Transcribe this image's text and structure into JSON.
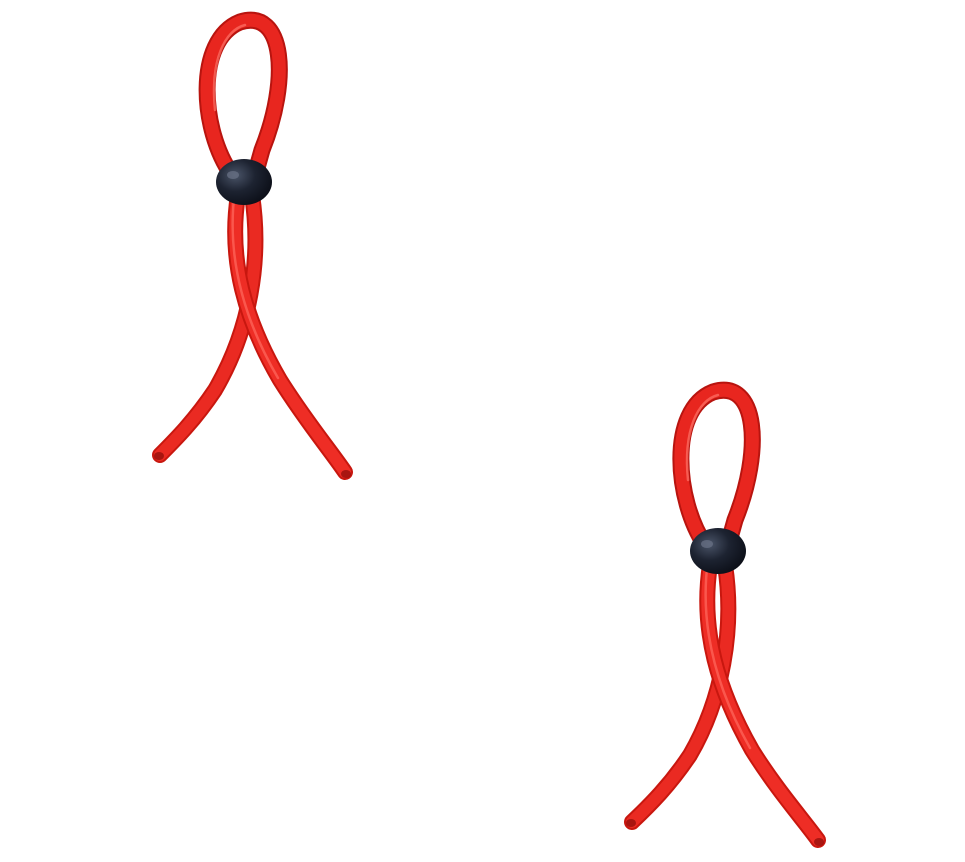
{
  "image": {
    "background_color": "#ffffff",
    "objects": [
      {
        "name": "silicone-loop-left",
        "tube_color": "#e8261f",
        "tube_shadow": "#b8140f",
        "bead_color": "#1d2331"
      },
      {
        "name": "silicone-loop-right",
        "tube_color": "#e8261f",
        "tube_shadow": "#b8140f",
        "bead_color": "#1d2331"
      }
    ]
  }
}
